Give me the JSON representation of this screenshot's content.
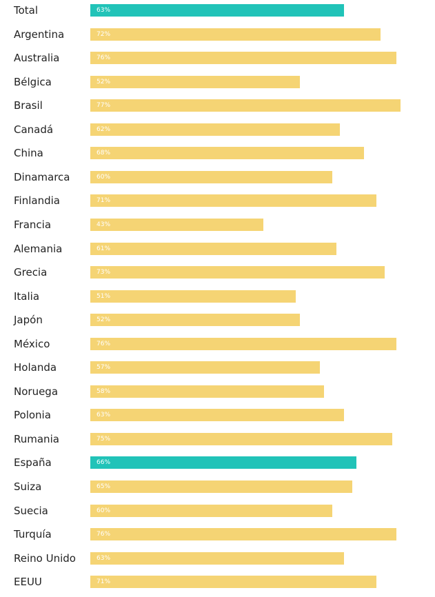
{
  "chart_data": {
    "type": "bar",
    "orientation": "horizontal",
    "title": "",
    "xlabel": "",
    "ylabel": "",
    "categories": [
      "Total",
      "Argentina",
      "Australia",
      "Bélgica",
      "Brasil",
      "Canadá",
      "China",
      "Dinamarca",
      "Finlandia",
      "Francia",
      "Alemania",
      "Grecia",
      "Italia",
      "Japón",
      "México",
      "Holanda",
      "Noruega",
      "Polonia",
      "Rumania",
      "España",
      "Suiza",
      "Suecia",
      "Turquía",
      "Reino Unido",
      "EEUU"
    ],
    "values": [
      63,
      72,
      76,
      52,
      77,
      62,
      68,
      60,
      71,
      43,
      61,
      73,
      51,
      52,
      76,
      57,
      58,
      63,
      75,
      66,
      65,
      60,
      76,
      63,
      71
    ],
    "value_labels": [
      "63%",
      "72%",
      "76%",
      "52%",
      "77%",
      "62%",
      "68%",
      "60%",
      "71%",
      "43%",
      "61%",
      "73%",
      "51%",
      "52%",
      "76%",
      "57%",
      "58%",
      "63%",
      "75%",
      "66%",
      "65%",
      "60%",
      "76%",
      "63%",
      "71%"
    ],
    "highlighted_categories": [
      "Total",
      "España"
    ],
    "xlim": [
      0,
      100
    ],
    "grid": false,
    "legend": "none",
    "colors": {
      "default_bar": "#f5d474",
      "highlight_bar": "#21c3b8",
      "value_text": "#ffffff",
      "label_text": "#222222"
    }
  }
}
